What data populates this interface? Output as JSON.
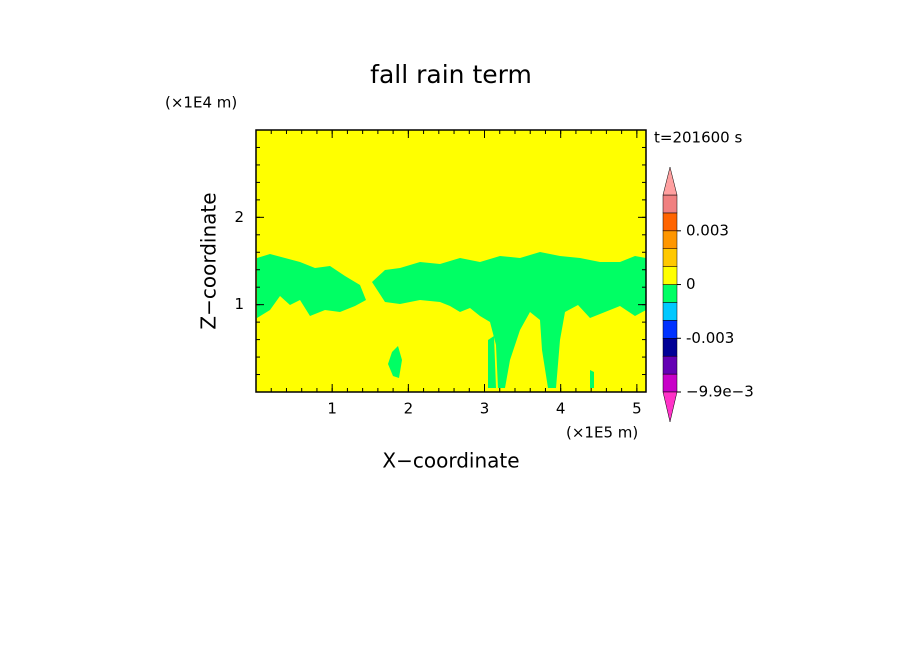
{
  "chart_data": {
    "type": "contour",
    "title": "fall rain term",
    "time_label": "t=201600 s",
    "x_label": "X−coordinate",
    "y_label": "Z−coordinate",
    "x_unit": "(×1E5 m)",
    "y_unit": "(×1E4 m)",
    "xlim": [
      0,
      5.12
    ],
    "ylim": [
      0,
      3
    ],
    "xticks": [
      1,
      2,
      3,
      4,
      5
    ],
    "yticks": [
      1,
      2
    ],
    "colorbar": {
      "levels": [
        -0.0099,
        -0.006,
        -0.004,
        -0.003,
        -0.002,
        -0.001,
        0,
        0.001,
        0.002,
        0.003,
        0.004,
        0.005
      ],
      "colors": [
        "#c800c8",
        "#6400b4",
        "#000096",
        "#0032ff",
        "#00c8ff",
        "#00ff64",
        "#ffff00",
        "#ffc800",
        "#ff9600",
        "#ff6400",
        "#f08080"
      ],
      "under_color": "#ff32c8",
      "over_color": "#ffa0a0",
      "ticks": [
        0.003,
        0,
        -0.003,
        {
          "value": -0.0099,
          "label": "−9.9e−3"
        }
      ]
    }
  }
}
